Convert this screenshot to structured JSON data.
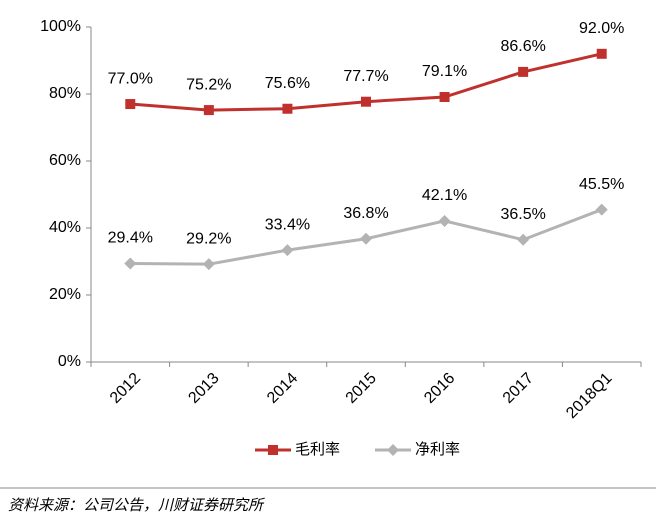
{
  "chart_data": {
    "type": "line",
    "categories": [
      "2012",
      "2013",
      "2014",
      "2015",
      "2016",
      "2017",
      "2018Q1"
    ],
    "series": [
      {
        "name": "毛利率",
        "color": "#c0312e",
        "marker": "square",
        "values": [
          77.0,
          75.2,
          75.6,
          77.7,
          79.1,
          86.6,
          92.0
        ],
        "value_labels": [
          "77.0%",
          "75.2%",
          "75.6%",
          "77.7%",
          "79.1%",
          "86.6%",
          "92.0%"
        ]
      },
      {
        "name": "净利率",
        "color": "#b3b3b3",
        "marker": "diamond",
        "values": [
          29.4,
          29.2,
          33.4,
          36.8,
          42.1,
          36.5,
          45.5
        ],
        "value_labels": [
          "29.4%",
          "29.2%",
          "33.4%",
          "36.8%",
          "42.1%",
          "36.5%",
          "45.5%"
        ]
      }
    ],
    "ylim": [
      0,
      100
    ],
    "yticks": [
      {
        "value": 0,
        "label": "0%"
      },
      {
        "value": 20,
        "label": "20%"
      },
      {
        "value": 40,
        "label": "40%"
      },
      {
        "value": 60,
        "label": "60%"
      },
      {
        "value": 80,
        "label": "80%"
      },
      {
        "value": 100,
        "label": "100%"
      }
    ],
    "grid": false,
    "legend": "bottom",
    "source": "资料来源：公司公告，川财证券研究所"
  }
}
